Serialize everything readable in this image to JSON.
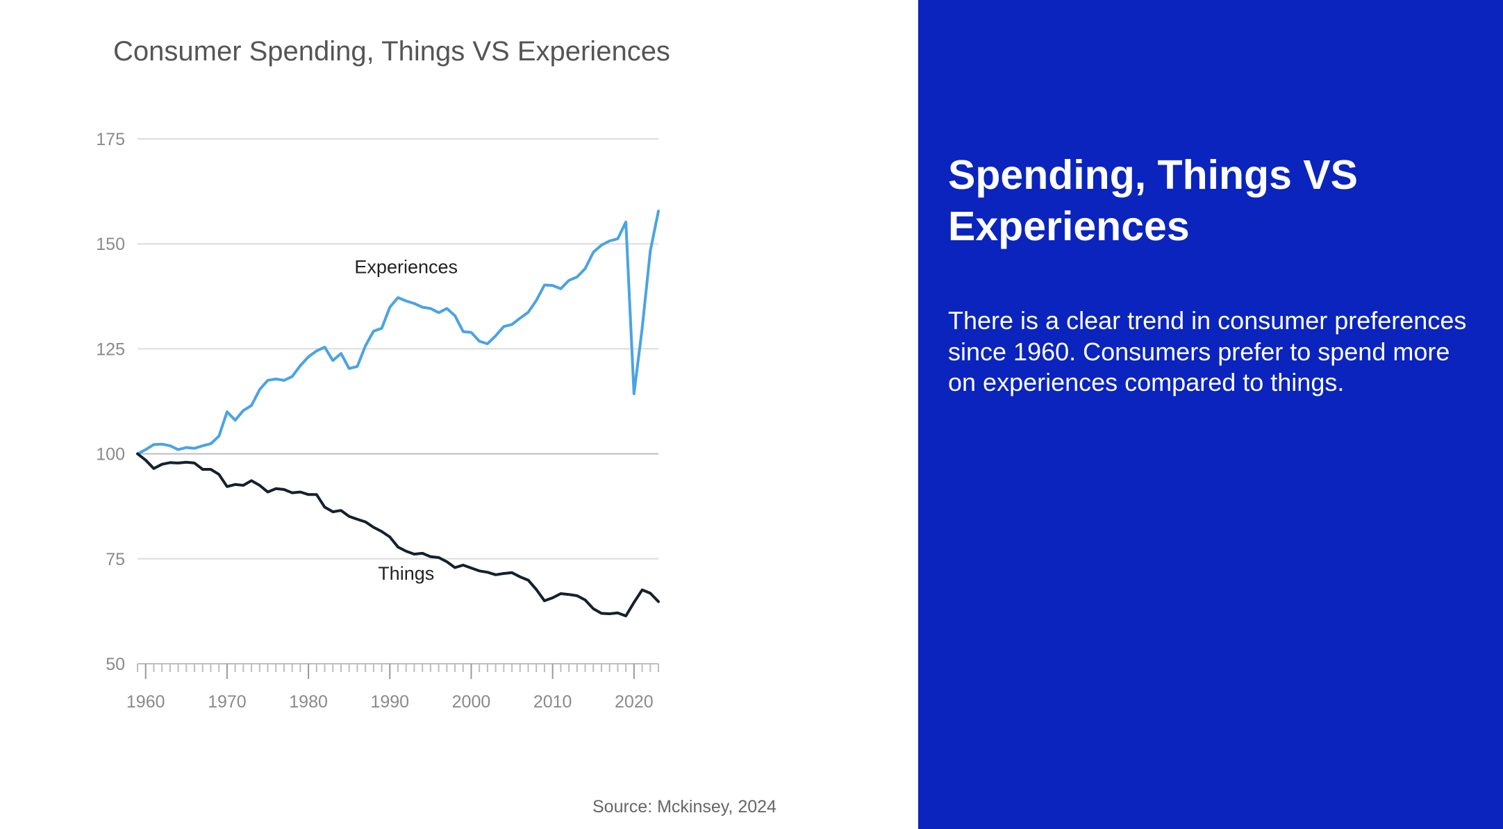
{
  "slide": {
    "source": "Source: Mckinsey, 2024",
    "panel": {
      "heading": "Spending, Things VS Experiences",
      "body": "There is a clear trend in consumer preferences since 1960. Consumers prefer to spend more on experiences compared to things."
    },
    "colors": {
      "panel_background": "#0a24bd",
      "panel_text": "#ffffff"
    }
  },
  "chart_data": {
    "type": "line",
    "title": "Consumer Spending, Things VS Experiences",
    "xlabel": "",
    "ylabel": "",
    "xlim": [
      1959,
      2023
    ],
    "ylim": [
      50,
      175
    ],
    "yticks": [
      50,
      75,
      100,
      125,
      150,
      175
    ],
    "xticks": [
      1960,
      1970,
      1980,
      1990,
      2000,
      2010,
      2020
    ],
    "grid": "horizontal",
    "x": [
      1959,
      1960,
      1961,
      1962,
      1963,
      1964,
      1965,
      1966,
      1967,
      1968,
      1969,
      1970,
      1971,
      1972,
      1973,
      1974,
      1975,
      1976,
      1977,
      1978,
      1979,
      1980,
      1981,
      1982,
      1983,
      1984,
      1985,
      1986,
      1987,
      1988,
      1989,
      1990,
      1991,
      1992,
      1993,
      1994,
      1995,
      1996,
      1997,
      1998,
      1999,
      2000,
      2001,
      2002,
      2003,
      2004,
      2005,
      2006,
      2007,
      2008,
      2009,
      2010,
      2011,
      2012,
      2013,
      2014,
      2015,
      2016,
      2017,
      2018,
      2019,
      2020,
      2021,
      2022,
      2023
    ],
    "series": [
      {
        "name": "Experiences",
        "color": "#4aa3e3",
        "values": [
          100,
          101,
          102.2,
          102.3,
          101.9,
          101,
          101.5,
          101.3,
          101.9,
          102.4,
          104.2,
          110,
          108,
          110.3,
          111.5,
          115.3,
          117.5,
          117.8,
          117.5,
          118.4,
          121,
          123.1,
          124.5,
          125.4,
          122.2,
          123.9,
          120.3,
          120.8,
          125.7,
          129.2,
          129.9,
          134.9,
          137.2,
          136.4,
          135.8,
          134.9,
          134.6,
          133.6,
          134.6,
          132.9,
          129.1,
          128.9,
          126.8,
          126.2,
          128.1,
          130.3,
          130.8,
          132.3,
          133.7,
          136.5,
          140.2,
          140.1,
          139.3,
          141.3,
          142.1,
          144.1,
          148,
          149.7,
          150.7,
          151.2,
          155.2,
          114.3,
          129.9,
          148.3,
          157.8
        ]
      },
      {
        "name": "Things",
        "color": "#14202e",
        "values": [
          100,
          98.5,
          96.5,
          97.5,
          97.9,
          97.8,
          98,
          97.8,
          96.3,
          96.3,
          95.1,
          92.2,
          92.7,
          92.5,
          93.6,
          92.5,
          90.9,
          91.7,
          91.5,
          90.7,
          90.9,
          90.3,
          90.3,
          87.3,
          86.2,
          86.5,
          85.1,
          84.4,
          83.8,
          82.5,
          81.5,
          80.2,
          77.8,
          76.8,
          76.1,
          76.3,
          75.5,
          75.3,
          74.3,
          72.9,
          73.5,
          72.8,
          72.1,
          71.8,
          71.2,
          71.5,
          71.7,
          70.7,
          69.9,
          67.7,
          65,
          65.7,
          66.7,
          66.5,
          66.2,
          65.2,
          63.1,
          62,
          61.9,
          62.1,
          61.4,
          64.6,
          67.6,
          66.8,
          64.8
        ]
      }
    ],
    "annotations": [
      {
        "text": "Experiences",
        "x": 1992,
        "y": 143
      },
      {
        "text": "Things",
        "x": 1992,
        "y": 70
      }
    ]
  }
}
